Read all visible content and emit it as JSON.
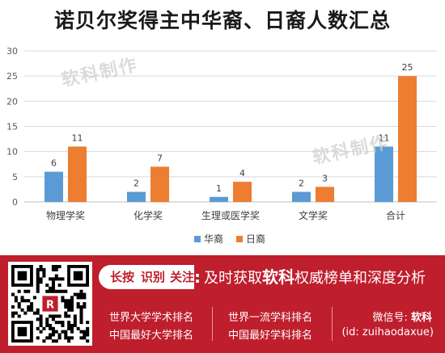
{
  "chart_data": {
    "type": "bar",
    "title": "诺贝尔奖得主中华裔、日裔人数汇总",
    "categories": [
      "物理学奖",
      "化学奖",
      "生理或医学奖",
      "文学奖",
      "合计"
    ],
    "series": [
      {
        "name": "华裔",
        "color": "#5b9bd5",
        "values": [
          6,
          2,
          1,
          2,
          11
        ]
      },
      {
        "name": "日裔",
        "color": "#ed7d31",
        "values": [
          11,
          7,
          4,
          3,
          25
        ]
      }
    ],
    "yticks": [
      "0",
      "5",
      "10",
      "15",
      "20",
      "25",
      "30"
    ],
    "ylim": [
      0,
      30
    ],
    "grid": true,
    "legend": "bottom-center",
    "data_labels": true
  },
  "watermark": [
    "软科制作",
    "软科制作"
  ],
  "footer": {
    "cta_keys": [
      "长按",
      "识别",
      "关注"
    ],
    "cta_colon": ":",
    "cta_prefix": "及时获取",
    "cta_brand": "软科",
    "cta_suffix": "权威榜单和深度分析",
    "rankings": [
      "世界大学学术排名",
      "中国最好大学排名",
      "世界一流学科排名",
      "中国最好学科排名"
    ],
    "wechat_label": "微信号:",
    "wechat_brand": "软科",
    "wechat_id": "(id: zuihaodaxue)",
    "qr_logo_char": "R"
  }
}
